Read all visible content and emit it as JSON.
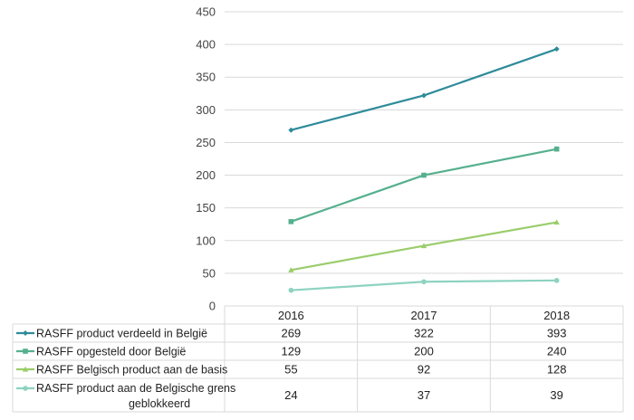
{
  "chart_data": {
    "type": "line",
    "categories": [
      "2016",
      "2017",
      "2018"
    ],
    "ylim": [
      0,
      450
    ],
    "yticks": [
      0,
      50,
      100,
      150,
      200,
      250,
      300,
      350,
      400,
      450
    ],
    "grid": true,
    "legend": "data-table-left",
    "series": [
      {
        "name": "RASFF product verdeeld in België",
        "values": [
          269,
          322,
          393
        ],
        "color": "#2E8B9A",
        "marker": "diamond"
      },
      {
        "name": "RASFF opgesteld door België",
        "values": [
          129,
          200,
          240
        ],
        "color": "#55B08E",
        "marker": "square"
      },
      {
        "name": "RASFF Belgisch product aan de basis",
        "values": [
          55,
          92,
          128
        ],
        "color": "#9ACD6C",
        "marker": "triangle"
      },
      {
        "name": "RASFF product aan de Belgische grens geblokkeerd",
        "values": [
          24,
          37,
          39
        ],
        "color": "#8DD3C0",
        "marker": "circle"
      }
    ]
  }
}
